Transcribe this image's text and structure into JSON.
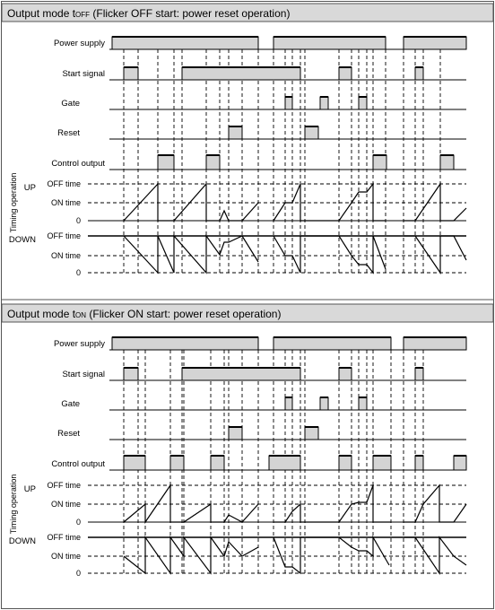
{
  "panels": [
    {
      "id": "toff",
      "title_prefix": "Output mode t",
      "title_sub": "OFF",
      "title_suffix": " (Flicker OFF start: power reset operation)",
      "labels": {
        "power_supply": "Power supply",
        "start_signal": "Start signal",
        "gate": "Gate",
        "reset": "Reset",
        "control_output": "Control output",
        "up": "UP",
        "down": "DOWN",
        "timing_operation": "Timing operation",
        "off_time": "OFF time",
        "on_time": "ON time",
        "zero": "0"
      }
    },
    {
      "id": "ton",
      "title_prefix": "Output mode t",
      "title_sub": "ON",
      "title_suffix": " (Flicker ON start: power reset operation)",
      "labels": {
        "power_supply": "Power supply",
        "start_signal": "Start signal",
        "gate": "Gate",
        "reset": "Reset",
        "control_output": "Control output",
        "up": "UP",
        "down": "DOWN",
        "timing_operation": "Timing operation",
        "off_time": "OFF time",
        "on_time": "ON time",
        "zero": "0"
      }
    }
  ],
  "colors": {
    "header_bg": "#d9d9d9",
    "pulse_fill": "#d4d4d4",
    "line": "#000000",
    "border": "#555555"
  }
}
